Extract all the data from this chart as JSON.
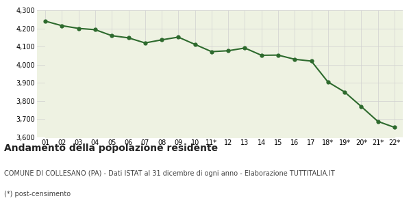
{
  "x_labels": [
    "01",
    "02",
    "03",
    "04",
    "05",
    "06",
    "07",
    "08",
    "09",
    "10",
    "11*",
    "12",
    "13",
    "14",
    "15",
    "16",
    "17",
    "18*",
    "19*",
    "20*",
    "21*",
    "22*"
  ],
  "values": [
    4240,
    4215,
    4200,
    4193,
    4160,
    4148,
    4120,
    4137,
    4152,
    4112,
    4072,
    4077,
    4092,
    4052,
    4053,
    4030,
    4020,
    3905,
    3850,
    3770,
    3688,
    3655
  ],
  "ylim": [
    3600,
    4300
  ],
  "yticks": [
    3600,
    3700,
    3800,
    3900,
    4000,
    4100,
    4200,
    4300
  ],
  "line_color": "#2d6a2d",
  "fill_color": "#eef2e2",
  "bg_color": "#ffffff",
  "grid_color": "#d0d0d0",
  "marker": "o",
  "marker_size": 3.5,
  "line_width": 1.5,
  "title": "Andamento della popolazione residente",
  "subtitle": "COMUNE DI COLLESANO (PA) - Dati ISTAT al 31 dicembre di ogni anno - Elaborazione TUTTITALIA.IT",
  "footnote": "(*) post-censimento",
  "title_fontsize": 10,
  "subtitle_fontsize": 7,
  "footnote_fontsize": 7,
  "tick_fontsize": 7,
  "ytick_fontsize": 7
}
